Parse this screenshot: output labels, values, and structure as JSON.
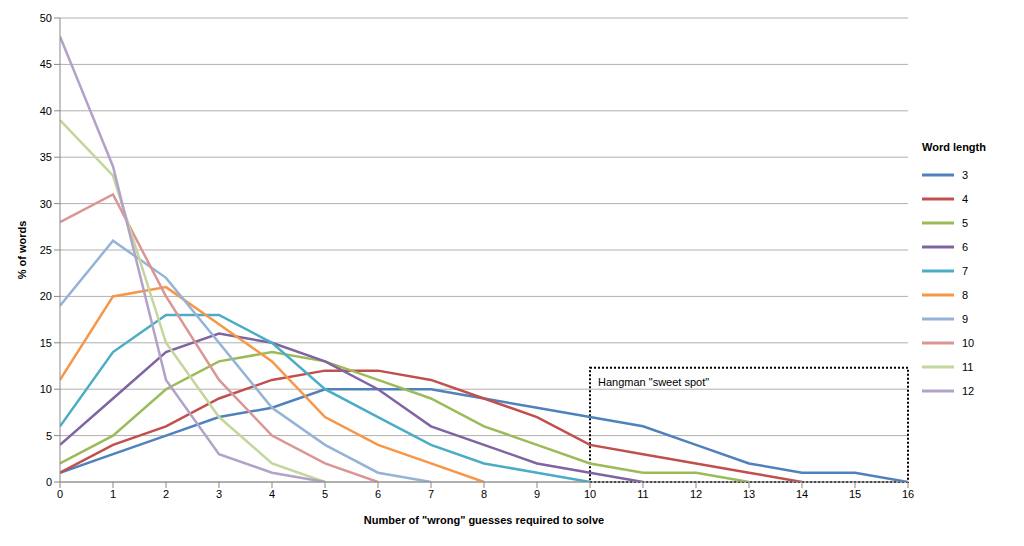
{
  "chart_data": {
    "type": "line",
    "x_label": "Number of \"wrong\" guesses required to solve",
    "y_label": "% of words",
    "legend_title": "Word length",
    "x": [
      0,
      1,
      2,
      3,
      4,
      5,
      6,
      7,
      8,
      9,
      10,
      11,
      12,
      13,
      14,
      15,
      16
    ],
    "xlim": [
      0,
      16
    ],
    "xticks": [
      0,
      1,
      2,
      3,
      4,
      5,
      6,
      7,
      8,
      9,
      10,
      11,
      12,
      13,
      14,
      15,
      16
    ],
    "ylim": [
      0,
      50
    ],
    "yticks": [
      0,
      5,
      10,
      15,
      20,
      25,
      30,
      35,
      40,
      45,
      50
    ],
    "grid": true,
    "legend": "right",
    "series": [
      {
        "name": "3",
        "color": "#4f81bd",
        "values": [
          1,
          3,
          5,
          7,
          8,
          10,
          10,
          10,
          9,
          8,
          7,
          6,
          4,
          2,
          1,
          1,
          0
        ]
      },
      {
        "name": "4",
        "color": "#c0504d",
        "values": [
          1,
          4,
          6,
          9,
          11,
          12,
          12,
          11,
          9,
          7,
          4,
          3,
          2,
          1,
          0,
          null,
          null
        ]
      },
      {
        "name": "5",
        "color": "#9bbb59",
        "values": [
          2,
          5,
          10,
          13,
          14,
          13,
          11,
          9,
          6,
          4,
          2,
          1,
          1,
          0,
          null,
          null,
          null
        ]
      },
      {
        "name": "6",
        "color": "#8064a2",
        "values": [
          4,
          9,
          14,
          16,
          15,
          13,
          10,
          6,
          4,
          2,
          1,
          0,
          null,
          null,
          null,
          null,
          null
        ]
      },
      {
        "name": "7",
        "color": "#4bacc6",
        "values": [
          6,
          14,
          18,
          18,
          15,
          10,
          7,
          4,
          2,
          1,
          0,
          null,
          null,
          null,
          null,
          null,
          null
        ]
      },
      {
        "name": "8",
        "color": "#f79646",
        "values": [
          11,
          20,
          21,
          17,
          13,
          7,
          4,
          2,
          0,
          null,
          null,
          null,
          null,
          null,
          null,
          null,
          null
        ]
      },
      {
        "name": "9",
        "color": "#95b3d7",
        "values": [
          19,
          26,
          22,
          15,
          8,
          4,
          1,
          0,
          null,
          null,
          null,
          null,
          null,
          null,
          null,
          null,
          null
        ]
      },
      {
        "name": "10",
        "color": "#d99694",
        "values": [
          28,
          31,
          20,
          11,
          5,
          2,
          0,
          null,
          null,
          null,
          null,
          null,
          null,
          null,
          null,
          null,
          null
        ]
      },
      {
        "name": "11",
        "color": "#c3d69b",
        "values": [
          39,
          33,
          15,
          7,
          2,
          0,
          null,
          null,
          null,
          null,
          null,
          null,
          null,
          null,
          null,
          null,
          null
        ]
      },
      {
        "name": "12",
        "color": "#b3a2c7",
        "values": [
          48,
          34,
          11,
          3,
          1,
          0,
          null,
          null,
          null,
          null,
          null,
          null,
          null,
          null,
          null,
          null,
          null
        ]
      }
    ],
    "annotation": {
      "text": "Hangman \"sweet spot\"",
      "x": [
        10,
        16
      ],
      "y": [
        0,
        12.3
      ]
    }
  }
}
